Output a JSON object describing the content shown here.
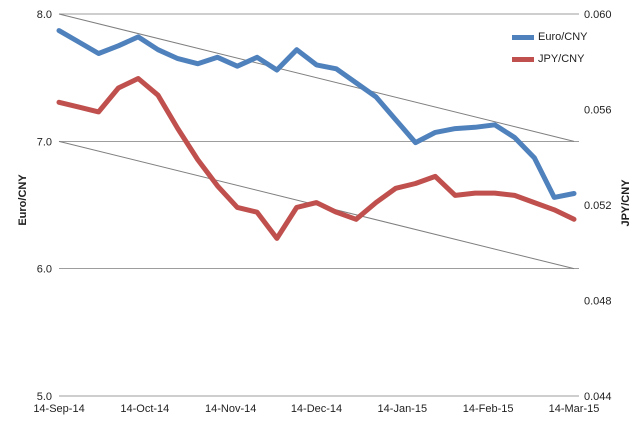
{
  "chart_data": {
    "type": "line",
    "title": "",
    "x_tick_labels": [
      "14-Sep-14",
      "14-Oct-14",
      "14-Nov-14",
      "14-Dec-14",
      "14-Jan-15",
      "14-Feb-15",
      "14-Mar-15"
    ],
    "left_axis": {
      "title": "Euro/CNY",
      "min": 5.0,
      "max": 8.0,
      "tick_labels": [
        "8.0",
        "7.0",
        "6.0",
        "5.0"
      ],
      "tick_values": [
        8.0,
        7.0,
        6.0,
        5.0
      ]
    },
    "right_axis": {
      "title": "JPY/CNY",
      "min": 0.044,
      "max": 0.06,
      "tick_labels": [
        "0.060",
        "0.056",
        "0.052",
        "0.048",
        "0.044"
      ],
      "tick_values": [
        0.06,
        0.056,
        0.052,
        0.048,
        0.044
      ]
    },
    "series": [
      {
        "name": "Euro/CNY",
        "axis": "left",
        "color": "#4F81BD",
        "values": [
          7.87,
          7.78,
          7.69,
          7.75,
          7.82,
          7.72,
          7.65,
          7.61,
          7.66,
          7.59,
          7.66,
          7.56,
          7.72,
          7.6,
          7.57,
          7.46,
          7.35,
          7.17,
          6.99,
          7.07,
          7.1,
          7.11,
          7.13,
          7.03,
          6.87,
          6.56,
          6.59
        ]
      },
      {
        "name": "JPY/CNY",
        "axis": "right",
        "color": "#C0504D",
        "values": [
          0.0563,
          0.0561,
          0.0559,
          0.0569,
          0.0573,
          0.0566,
          0.0552,
          0.0539,
          0.0528,
          0.0519,
          0.0517,
          0.0506,
          0.0519,
          0.0521,
          0.0517,
          0.0514,
          0.0521,
          0.0527,
          0.0529,
          0.0532,
          0.0524,
          0.0525,
          0.0525,
          0.0524,
          0.0521,
          0.0518,
          0.0514
        ]
      }
    ],
    "trendlines": [
      {
        "axis": "left",
        "start_value": 8.0,
        "end_value": 7.0
      },
      {
        "axis": "left",
        "start_value": 7.0,
        "end_value": 6.0
      }
    ],
    "legend": {
      "position": "top-right",
      "entries": [
        "Euro/CNY",
        "JPY/CNY"
      ]
    },
    "grid": true,
    "colors": {
      "gridline": "#9d9d9d",
      "trendline": "#7f7f7f",
      "axis_text": "#1f1f1f"
    }
  }
}
